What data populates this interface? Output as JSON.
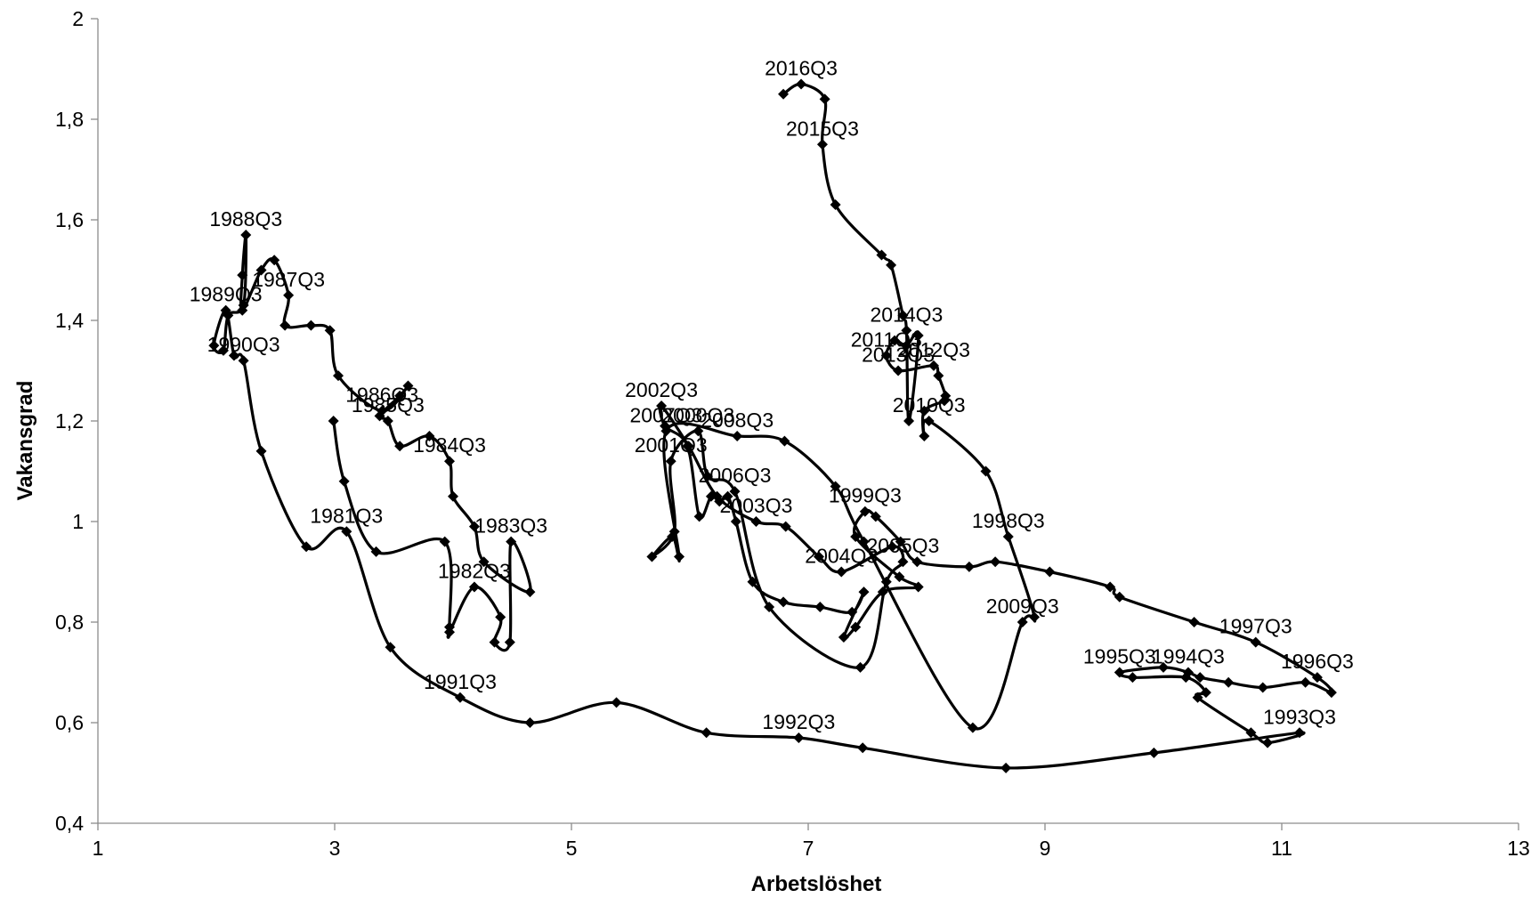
{
  "chart_data": {
    "type": "line",
    "title": "",
    "xlabel": "Arbetslöshet",
    "ylabel": "Vakansgrad",
    "xlim": [
      1,
      13
    ],
    "ylim": [
      0.4,
      2
    ],
    "x_ticks": [
      1,
      3,
      5,
      7,
      9,
      11,
      13
    ],
    "y_ticks": [
      "0,4",
      "0,6",
      "0,8",
      "1",
      "1,2",
      "1,4",
      "1,6",
      "1,8",
      "2"
    ],
    "y_tick_values": [
      0.4,
      0.6,
      0.8,
      1.0,
      1.2,
      1.4,
      1.6,
      1.8,
      2.0
    ],
    "grid": false,
    "legend": "none",
    "series_color": "#000000",
    "series": [
      {
        "points": [
          [
            2.99,
            1.2
          ],
          [
            3.08,
            1.08
          ],
          [
            3.35,
            0.94
          ],
          [
            3.93,
            0.96
          ],
          [
            3.97,
            0.79
          ],
          [
            3.97,
            0.78
          ],
          [
            4.18,
            0.87
          ],
          [
            4.4,
            0.81
          ],
          [
            4.35,
            0.76
          ],
          [
            4.48,
            0.76
          ],
          [
            4.49,
            0.96
          ],
          [
            4.65,
            0.86
          ],
          [
            4.26,
            0.92
          ],
          [
            4.18,
            0.99
          ],
          [
            4.0,
            1.05
          ],
          [
            3.97,
            1.12
          ],
          [
            3.8,
            1.17
          ],
          [
            3.55,
            1.15
          ],
          [
            3.45,
            1.2
          ],
          [
            3.38,
            1.21
          ],
          [
            3.55,
            1.25
          ],
          [
            3.62,
            1.27
          ],
          [
            3.4,
            1.22
          ],
          [
            3.03,
            1.29
          ],
          [
            2.96,
            1.38
          ],
          [
            2.8,
            1.39
          ],
          [
            2.58,
            1.39
          ],
          [
            2.61,
            1.45
          ],
          [
            2.49,
            1.52
          ],
          [
            2.38,
            1.5
          ],
          [
            2.22,
            1.42
          ],
          [
            2.22,
            1.49
          ],
          [
            2.25,
            1.57
          ],
          [
            2.23,
            1.43
          ],
          [
            2.1,
            1.41
          ],
          [
            2.06,
            1.34
          ],
          [
            1.98,
            1.35
          ],
          [
            2.08,
            1.42
          ],
          [
            2.15,
            1.33
          ],
          [
            2.23,
            1.32
          ],
          [
            2.38,
            1.14
          ],
          [
            2.76,
            0.95
          ],
          [
            3.1,
            0.98
          ],
          [
            3.47,
            0.75
          ],
          [
            4.06,
            0.65
          ],
          [
            4.65,
            0.6
          ],
          [
            5.38,
            0.64
          ],
          [
            6.14,
            0.58
          ],
          [
            6.92,
            0.57
          ],
          [
            7.46,
            0.55
          ],
          [
            8.67,
            0.51
          ],
          [
            9.92,
            0.54
          ],
          [
            11.15,
            0.58
          ],
          [
            10.88,
            0.56
          ],
          [
            10.74,
            0.58
          ],
          [
            10.29,
            0.65
          ],
          [
            10.36,
            0.66
          ],
          [
            10.19,
            0.69
          ],
          [
            9.74,
            0.69
          ],
          [
            9.63,
            0.7
          ],
          [
            10.0,
            0.71
          ],
          [
            10.21,
            0.7
          ],
          [
            10.31,
            0.69
          ],
          [
            10.55,
            0.68
          ],
          [
            10.84,
            0.67
          ],
          [
            11.2,
            0.68
          ],
          [
            11.42,
            0.66
          ],
          [
            11.3,
            0.69
          ],
          [
            10.78,
            0.76
          ],
          [
            10.26,
            0.8
          ],
          [
            9.63,
            0.85
          ],
          [
            9.55,
            0.87
          ],
          [
            9.04,
            0.9
          ],
          [
            8.58,
            0.92
          ],
          [
            8.36,
            0.91
          ],
          [
            7.92,
            0.92
          ],
          [
            7.78,
            0.96
          ],
          [
            7.57,
            1.01
          ],
          [
            7.48,
            1.02
          ],
          [
            7.4,
            0.97
          ],
          [
            7.77,
            0.89
          ],
          [
            7.93,
            0.87
          ],
          [
            7.63,
            0.86
          ],
          [
            7.4,
            0.79
          ],
          [
            7.3,
            0.77
          ],
          [
            7.47,
            0.86
          ],
          [
            7.37,
            0.82
          ],
          [
            7.1,
            0.83
          ],
          [
            6.79,
            0.84
          ],
          [
            6.53,
            0.88
          ],
          [
            6.39,
            1.0
          ],
          [
            6.32,
            1.05
          ],
          [
            6.25,
            1.04
          ],
          [
            6.18,
            1.05
          ],
          [
            6.08,
            1.01
          ],
          [
            5.98,
            1.15
          ],
          [
            5.79,
            1.19
          ],
          [
            5.76,
            1.23
          ],
          [
            5.99,
            1.15
          ],
          [
            6.23,
            1.05
          ],
          [
            6.56,
            1.0
          ],
          [
            6.81,
            0.99
          ],
          [
            7.09,
            0.93
          ],
          [
            7.28,
            0.9
          ],
          [
            7.71,
            0.95
          ],
          [
            7.8,
            0.92
          ],
          [
            7.66,
            0.88
          ],
          [
            7.44,
            0.71
          ],
          [
            6.67,
            0.83
          ],
          [
            6.38,
            1.06
          ],
          [
            6.15,
            1.09
          ],
          [
            6.07,
            1.18
          ],
          [
            5.84,
            1.12
          ],
          [
            5.87,
            0.98
          ],
          [
            5.68,
            0.93
          ],
          [
            5.85,
            0.97
          ],
          [
            5.91,
            0.93
          ],
          [
            5.8,
            1.18
          ],
          [
            6.4,
            1.17
          ],
          [
            6.8,
            1.16
          ],
          [
            7.23,
            1.07
          ],
          [
            7.47,
            0.96
          ],
          [
            8.39,
            0.59
          ],
          [
            8.81,
            0.8
          ],
          [
            8.91,
            0.81
          ],
          [
            8.69,
            0.97
          ],
          [
            8.5,
            1.1
          ],
          [
            8.02,
            1.2
          ],
          [
            7.98,
            1.17
          ],
          [
            7.98,
            1.22
          ],
          [
            8.15,
            1.24
          ],
          [
            8.16,
            1.25
          ],
          [
            8.1,
            1.29
          ],
          [
            8.06,
            1.31
          ],
          [
            7.76,
            1.3
          ],
          [
            7.66,
            1.33
          ],
          [
            7.73,
            1.36
          ],
          [
            7.83,
            1.35
          ],
          [
            7.93,
            1.37
          ],
          [
            7.85,
            1.2
          ],
          [
            7.83,
            1.38
          ],
          [
            7.8,
            1.41
          ],
          [
            7.7,
            1.51
          ],
          [
            7.62,
            1.53
          ],
          [
            7.23,
            1.63
          ],
          [
            7.12,
            1.75
          ],
          [
            7.14,
            1.84
          ],
          [
            6.94,
            1.87
          ],
          [
            6.79,
            1.85
          ]
        ]
      }
    ],
    "annotations": [
      {
        "text": "1981Q3",
        "x": 3.1,
        "y": 0.98
      },
      {
        "text": "1982Q3",
        "x": 4.18,
        "y": 0.87
      },
      {
        "text": "1983Q3",
        "x": 4.49,
        "y": 0.96
      },
      {
        "text": "1984Q3",
        "x": 3.97,
        "y": 1.12
      },
      {
        "text": "1985Q3",
        "x": 3.45,
        "y": 1.2
      },
      {
        "text": "1986Q3",
        "x": 3.4,
        "y": 1.22
      },
      {
        "text": "1987Q3",
        "x": 2.61,
        "y": 1.45
      },
      {
        "text": "1988Q3",
        "x": 2.25,
        "y": 1.57
      },
      {
        "text": "1989Q3",
        "x": 2.08,
        "y": 1.42
      },
      {
        "text": "1990Q3",
        "x": 2.23,
        "y": 1.32
      },
      {
        "text": "1991Q3",
        "x": 4.06,
        "y": 0.65
      },
      {
        "text": "1992Q3",
        "x": 6.92,
        "y": 0.57
      },
      {
        "text": "1993Q3",
        "x": 11.15,
        "y": 0.58
      },
      {
        "text": "1994Q3",
        "x": 10.21,
        "y": 0.7
      },
      {
        "text": "1995Q3",
        "x": 9.63,
        "y": 0.7
      },
      {
        "text": "1996Q3",
        "x": 11.3,
        "y": 0.69
      },
      {
        "text": "1997Q3",
        "x": 10.78,
        "y": 0.76
      },
      {
        "text": "1998Q3",
        "x": 8.69,
        "y": 0.97
      },
      {
        "text": "1999Q3",
        "x": 7.48,
        "y": 1.02
      },
      {
        "text": "2000Q3",
        "x": 6.07,
        "y": 1.18
      },
      {
        "text": "2001Q3",
        "x": 5.84,
        "y": 1.12
      },
      {
        "text": "2002Q3",
        "x": 5.76,
        "y": 1.23
      },
      {
        "text": "2003Q3",
        "x": 6.56,
        "y": 1.0
      },
      {
        "text": "2004Q3",
        "x": 7.28,
        "y": 0.9
      },
      {
        "text": "2005Q3",
        "x": 7.8,
        "y": 0.92
      },
      {
        "text": "2006Q3",
        "x": 6.38,
        "y": 1.06
      },
      {
        "text": "2007Q3",
        "x": 5.8,
        "y": 1.18
      },
      {
        "text": "2008Q3",
        "x": 6.4,
        "y": 1.17
      },
      {
        "text": "2009Q3",
        "x": 8.81,
        "y": 0.8
      },
      {
        "text": "2010Q3",
        "x": 8.02,
        "y": 1.2
      },
      {
        "text": "2011Q3",
        "x": 7.66,
        "y": 1.33
      },
      {
        "text": "2012Q3",
        "x": 8.06,
        "y": 1.31
      },
      {
        "text": "2013Q3",
        "x": 7.76,
        "y": 1.3
      },
      {
        "text": "2014Q3",
        "x": 7.83,
        "y": 1.38
      },
      {
        "text": "2015Q3",
        "x": 7.12,
        "y": 1.75
      },
      {
        "text": "2016Q3",
        "x": 6.94,
        "y": 1.87
      }
    ]
  }
}
